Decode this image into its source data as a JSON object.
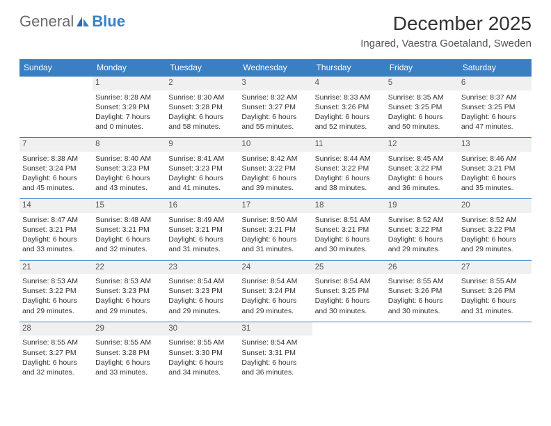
{
  "logo": {
    "general": "General",
    "blue": "Blue"
  },
  "title": "December 2025",
  "location": "Ingared, Vaestra Goetaland, Sweden",
  "colors": {
    "header_bg": "#3a7fc4",
    "header_text": "#ffffff",
    "daynum_bg": "#f0f0f0",
    "border": "#3a7fc4",
    "body_text": "#333333"
  },
  "day_headers": [
    "Sunday",
    "Monday",
    "Tuesday",
    "Wednesday",
    "Thursday",
    "Friday",
    "Saturday"
  ],
  "weeks": [
    [
      {
        "n": "",
        "t": ""
      },
      {
        "n": "1",
        "t": "Sunrise: 8:28 AM\nSunset: 3:29 PM\nDaylight: 7 hours and 0 minutes."
      },
      {
        "n": "2",
        "t": "Sunrise: 8:30 AM\nSunset: 3:28 PM\nDaylight: 6 hours and 58 minutes."
      },
      {
        "n": "3",
        "t": "Sunrise: 8:32 AM\nSunset: 3:27 PM\nDaylight: 6 hours and 55 minutes."
      },
      {
        "n": "4",
        "t": "Sunrise: 8:33 AM\nSunset: 3:26 PM\nDaylight: 6 hours and 52 minutes."
      },
      {
        "n": "5",
        "t": "Sunrise: 8:35 AM\nSunset: 3:25 PM\nDaylight: 6 hours and 50 minutes."
      },
      {
        "n": "6",
        "t": "Sunrise: 8:37 AM\nSunset: 3:25 PM\nDaylight: 6 hours and 47 minutes."
      }
    ],
    [
      {
        "n": "7",
        "t": "Sunrise: 8:38 AM\nSunset: 3:24 PM\nDaylight: 6 hours and 45 minutes."
      },
      {
        "n": "8",
        "t": "Sunrise: 8:40 AM\nSunset: 3:23 PM\nDaylight: 6 hours and 43 minutes."
      },
      {
        "n": "9",
        "t": "Sunrise: 8:41 AM\nSunset: 3:23 PM\nDaylight: 6 hours and 41 minutes."
      },
      {
        "n": "10",
        "t": "Sunrise: 8:42 AM\nSunset: 3:22 PM\nDaylight: 6 hours and 39 minutes."
      },
      {
        "n": "11",
        "t": "Sunrise: 8:44 AM\nSunset: 3:22 PM\nDaylight: 6 hours and 38 minutes."
      },
      {
        "n": "12",
        "t": "Sunrise: 8:45 AM\nSunset: 3:22 PM\nDaylight: 6 hours and 36 minutes."
      },
      {
        "n": "13",
        "t": "Sunrise: 8:46 AM\nSunset: 3:21 PM\nDaylight: 6 hours and 35 minutes."
      }
    ],
    [
      {
        "n": "14",
        "t": "Sunrise: 8:47 AM\nSunset: 3:21 PM\nDaylight: 6 hours and 33 minutes."
      },
      {
        "n": "15",
        "t": "Sunrise: 8:48 AM\nSunset: 3:21 PM\nDaylight: 6 hours and 32 minutes."
      },
      {
        "n": "16",
        "t": "Sunrise: 8:49 AM\nSunset: 3:21 PM\nDaylight: 6 hours and 31 minutes."
      },
      {
        "n": "17",
        "t": "Sunrise: 8:50 AM\nSunset: 3:21 PM\nDaylight: 6 hours and 31 minutes."
      },
      {
        "n": "18",
        "t": "Sunrise: 8:51 AM\nSunset: 3:21 PM\nDaylight: 6 hours and 30 minutes."
      },
      {
        "n": "19",
        "t": "Sunrise: 8:52 AM\nSunset: 3:22 PM\nDaylight: 6 hours and 29 minutes."
      },
      {
        "n": "20",
        "t": "Sunrise: 8:52 AM\nSunset: 3:22 PM\nDaylight: 6 hours and 29 minutes."
      }
    ],
    [
      {
        "n": "21",
        "t": "Sunrise: 8:53 AM\nSunset: 3:22 PM\nDaylight: 6 hours and 29 minutes."
      },
      {
        "n": "22",
        "t": "Sunrise: 8:53 AM\nSunset: 3:23 PM\nDaylight: 6 hours and 29 minutes."
      },
      {
        "n": "23",
        "t": "Sunrise: 8:54 AM\nSunset: 3:23 PM\nDaylight: 6 hours and 29 minutes."
      },
      {
        "n": "24",
        "t": "Sunrise: 8:54 AM\nSunset: 3:24 PM\nDaylight: 6 hours and 29 minutes."
      },
      {
        "n": "25",
        "t": "Sunrise: 8:54 AM\nSunset: 3:25 PM\nDaylight: 6 hours and 30 minutes."
      },
      {
        "n": "26",
        "t": "Sunrise: 8:55 AM\nSunset: 3:26 PM\nDaylight: 6 hours and 30 minutes."
      },
      {
        "n": "27",
        "t": "Sunrise: 8:55 AM\nSunset: 3:26 PM\nDaylight: 6 hours and 31 minutes."
      }
    ],
    [
      {
        "n": "28",
        "t": "Sunrise: 8:55 AM\nSunset: 3:27 PM\nDaylight: 6 hours and 32 minutes."
      },
      {
        "n": "29",
        "t": "Sunrise: 8:55 AM\nSunset: 3:28 PM\nDaylight: 6 hours and 33 minutes."
      },
      {
        "n": "30",
        "t": "Sunrise: 8:55 AM\nSunset: 3:30 PM\nDaylight: 6 hours and 34 minutes."
      },
      {
        "n": "31",
        "t": "Sunrise: 8:54 AM\nSunset: 3:31 PM\nDaylight: 6 hours and 36 minutes."
      },
      {
        "n": "",
        "t": ""
      },
      {
        "n": "",
        "t": ""
      },
      {
        "n": "",
        "t": ""
      }
    ]
  ]
}
